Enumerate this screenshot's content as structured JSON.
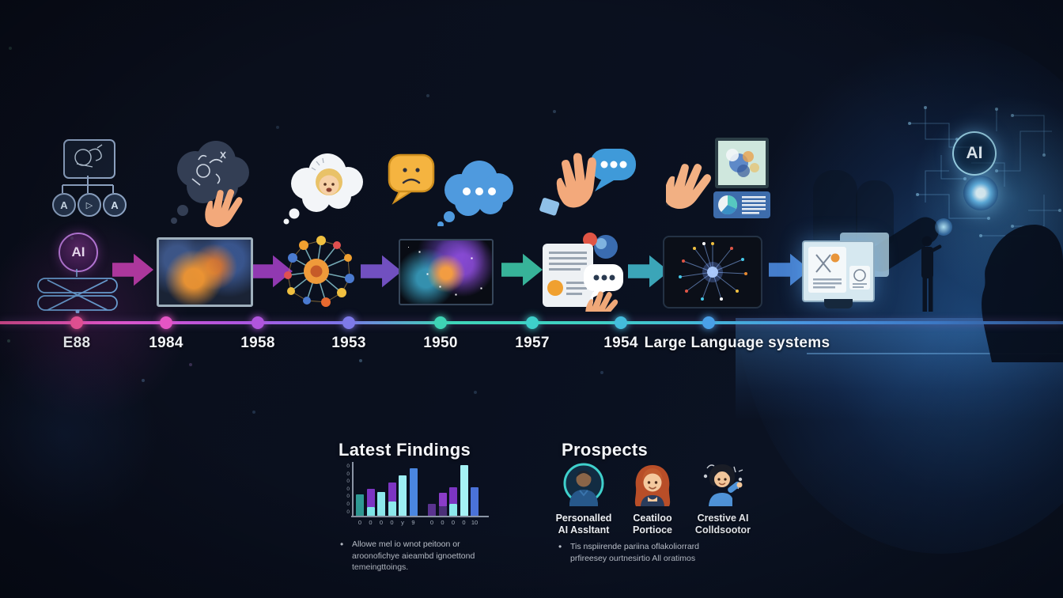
{
  "canvas": {
    "bg": "#0a0f1c"
  },
  "timeline": {
    "events": [
      {
        "label": "E88",
        "color": "#f0559b"
      },
      {
        "label": "1984",
        "color": "#e455c4"
      },
      {
        "label": "1958",
        "color": "#b055dd"
      },
      {
        "label": "1953",
        "color": "#7e7ae8"
      },
      {
        "label": "1950",
        "color": "#3ed4b4"
      },
      {
        "label": "1957",
        "color": "#3ecfca"
      },
      {
        "label": "1954",
        "color": "#44bcdc"
      },
      {
        "label": "Large Language systems",
        "color": "#4aa0e8"
      }
    ]
  },
  "flow": {
    "arrow_colors": [
      "#b83aa6",
      "#9c3cbc",
      "#7a55cc",
      "#3bbfa2",
      "#3fb0c4",
      "#4a86d8"
    ]
  },
  "icons": {
    "flowchart": {
      "node_labels": [
        "A",
        "▷",
        "A"
      ]
    },
    "ai_loop": {
      "label": "AI"
    },
    "ai_chip": {
      "label": "AI"
    }
  },
  "findings": {
    "title": "Latest Findings",
    "bullet_lines": [
      "Allowe mel io wnot peitoon or",
      "aroonofichye aieambd ignoettond",
      "temeingttoings."
    ]
  },
  "chart_data": {
    "type": "bar",
    "title": "Latest Findings",
    "xlabel": "",
    "ylabel": "",
    "ylim": [
      0,
      10
    ],
    "grid": false,
    "legend": false,
    "x_tick_labels": [
      "0",
      "0",
      "0",
      "0",
      "y",
      "9",
      "0",
      "0",
      "0",
      "0",
      "10"
    ],
    "y_tick_labels": [
      "0",
      "0",
      "0",
      "0",
      "0",
      "0",
      "0"
    ],
    "gap_after_index": 5,
    "bars": [
      {
        "segments": [
          {
            "value": 4.2,
            "color": "#2f9a94"
          }
        ]
      },
      {
        "segments": [
          {
            "value": 1.7,
            "color": "#7fe8ea"
          },
          {
            "value": 3.6,
            "color": "#7c35c2"
          }
        ]
      },
      {
        "segments": [
          {
            "value": 4.7,
            "color": "#8ce8ec"
          }
        ]
      },
      {
        "segments": [
          {
            "value": 2.8,
            "color": "#8ce8ec"
          },
          {
            "value": 3.7,
            "color": "#7c35c2"
          }
        ]
      },
      {
        "segments": [
          {
            "value": 7.9,
            "color": "#9ceef2"
          }
        ]
      },
      {
        "segments": [
          {
            "value": 9.3,
            "color": "#4a86e0"
          }
        ]
      },
      {
        "segments": [
          {
            "value": 2.3,
            "color": "#5a3390"
          }
        ]
      },
      {
        "segments": [
          {
            "value": 1.8,
            "color": "#4a2f77"
          },
          {
            "value": 2.7,
            "color": "#8a3cc8"
          }
        ]
      },
      {
        "segments": [
          {
            "value": 2.4,
            "color": "#8ce8ec"
          },
          {
            "value": 3.3,
            "color": "#7c35c2"
          }
        ]
      },
      {
        "segments": [
          {
            "value": 10,
            "color": "#a5f2f5"
          }
        ]
      },
      {
        "segments": [
          {
            "value": 5.6,
            "color": "#4a72d8"
          }
        ]
      }
    ]
  },
  "prospects": {
    "title": "Prospects",
    "items": [
      {
        "line1": "Personalled",
        "line2": "AI Assltant"
      },
      {
        "line1": "Ceatiloo",
        "line2": "Portioce"
      },
      {
        "line1": "Crestive AI",
        "line2": "Colldsootor"
      }
    ],
    "bullet_lines": [
      "Tis nspiirende pariina oflakoliorrard",
      "prfireesey ourtnesirtio All oratimos"
    ]
  }
}
